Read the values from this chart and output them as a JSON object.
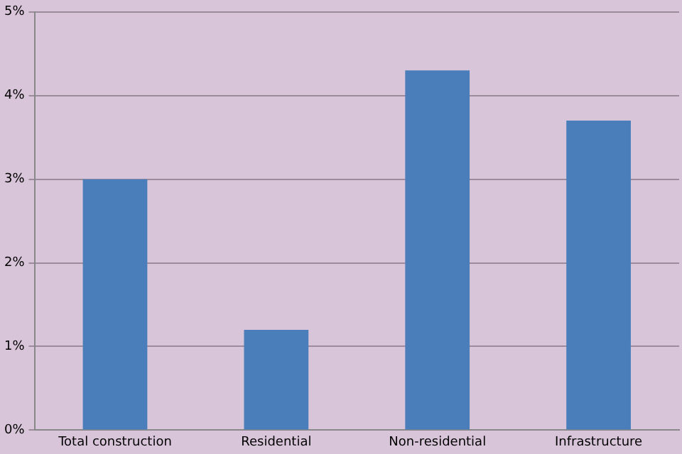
{
  "chart_data": {
    "type": "bar",
    "categories": [
      "Total construction",
      "Residential",
      "Non-residential",
      "Infrastructure"
    ],
    "values": [
      3.0,
      1.2,
      4.3,
      3.7
    ],
    "color": "#4a7ebb",
    "ylim": [
      0,
      5
    ],
    "yticks": [
      {
        "value": 0,
        "label": "0%"
      },
      {
        "value": 1,
        "label": "1%"
      },
      {
        "value": 2,
        "label": "2%"
      },
      {
        "value": 3,
        "label": "3%"
      },
      {
        "value": 4,
        "label": "4%"
      },
      {
        "value": 5,
        "label": "5%"
      }
    ],
    "grid": "y",
    "legend": false
  }
}
